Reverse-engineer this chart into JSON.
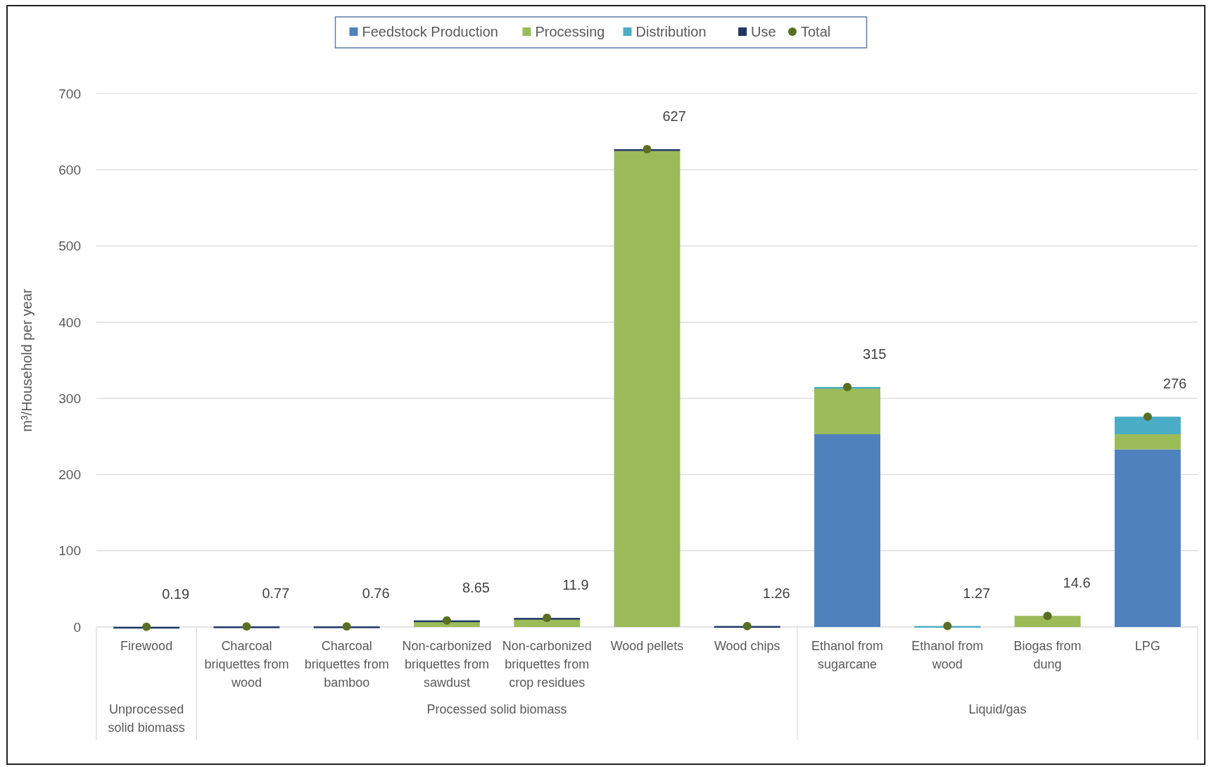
{
  "chart_data": {
    "type": "bar",
    "stacked": true,
    "ylabel": "m³/Household per year",
    "categories": [
      "Firewood",
      "Charcoal briquettes from wood",
      "Charcoal briquettes from bamboo",
      "Non-carbonized briquettes from sawdust",
      "Non-carbonized briquettes from crop residues",
      "Wood pellets",
      "Wood chips",
      "Ethanol from sugarcane",
      "Ethanol from wood",
      "Biogas from dung",
      "LPG"
    ],
    "series": [
      {
        "name": "Feedstock Production",
        "color": "#4f81bd",
        "values": [
          0,
          0,
          0,
          0,
          0,
          0,
          0,
          253,
          0,
          0,
          233
        ]
      },
      {
        "name": "Processing",
        "color": "#9bbb59",
        "values": [
          0,
          0,
          0,
          7.5,
          10.5,
          625,
          0,
          61,
          0,
          14.6,
          20
        ]
      },
      {
        "name": "Distribution",
        "color": "#4bacc6",
        "values": [
          0,
          0,
          0,
          0,
          0,
          0,
          0,
          1,
          1.27,
          0,
          23
        ]
      },
      {
        "name": "Use",
        "color": "#1f3864",
        "values": [
          0.19,
          0.77,
          0.76,
          1.15,
          1.4,
          2,
          1.26,
          0,
          0,
          0,
          0
        ]
      },
      {
        "name": "Total",
        "type": "scatter",
        "color": "#5a6e23",
        "marker": "circle",
        "values": [
          0.19,
          0.77,
          0.76,
          8.65,
          11.9,
          627,
          1.26,
          315,
          1.27,
          14.6,
          276
        ],
        "value_labels": [
          "0.19",
          "0.77",
          "0.76",
          "8.65",
          "11.9",
          "627",
          "1.26",
          "315",
          "1.27",
          "14.6",
          "276"
        ]
      }
    ],
    "annotations": [
      "Unprocessed solid biomass",
      "Processed solid biomass",
      "Liquid/gas"
    ],
    "ylim": [
      0,
      700
    ],
    "yticks": [
      0,
      100,
      200,
      300,
      400,
      500,
      600,
      700
    ],
    "grid": "y",
    "legend": "top"
  }
}
